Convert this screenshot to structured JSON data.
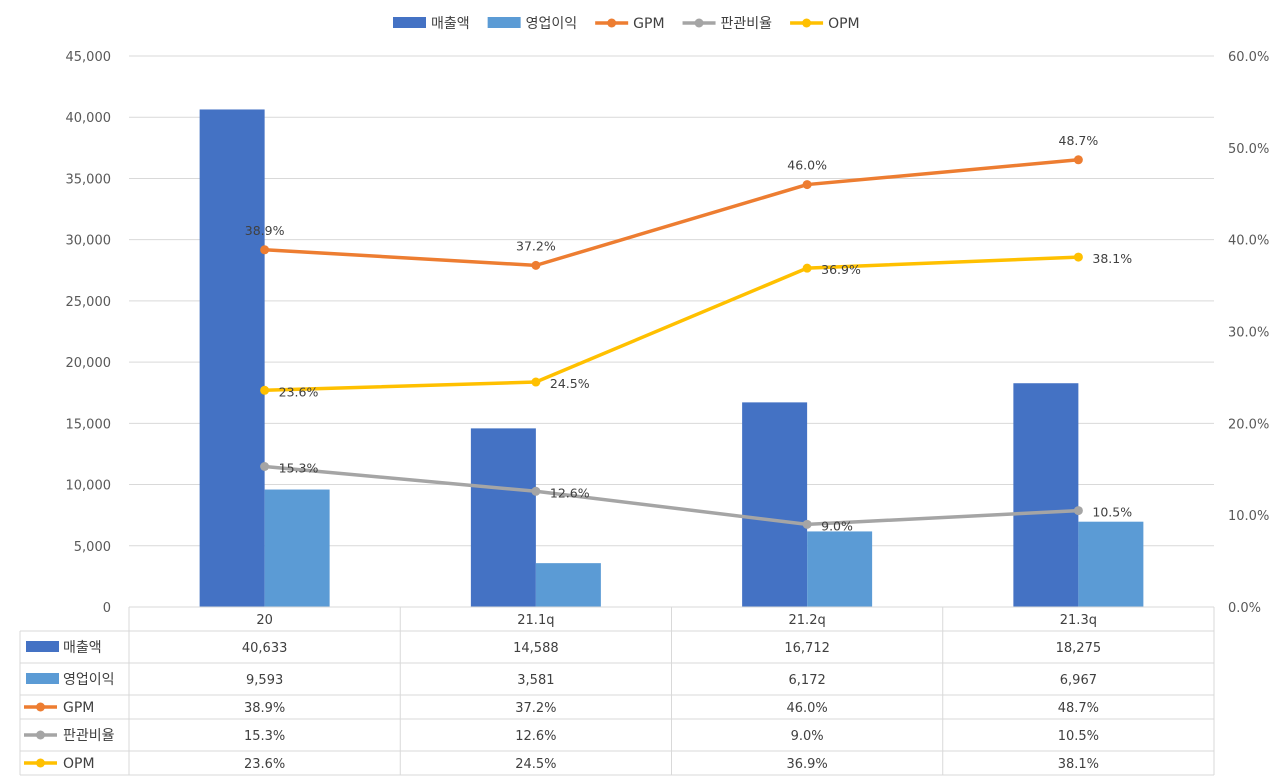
{
  "chart_data": {
    "type": "bar",
    "categories": [
      "20",
      "21.1q",
      "21.2q",
      "21.3q"
    ],
    "series": [
      {
        "name": "매출액",
        "kind": "bar",
        "axis": "left",
        "color": "#4472C4",
        "values": [
          40633,
          14588,
          16712,
          18275
        ]
      },
      {
        "name": "영업이익",
        "kind": "bar",
        "axis": "left",
        "color": "#5B9BD5",
        "values": [
          9593,
          3581,
          6172,
          6967
        ]
      },
      {
        "name": "GPM",
        "kind": "line",
        "axis": "right",
        "color": "#ED7D31",
        "values": [
          38.9,
          37.2,
          46.0,
          48.7
        ]
      },
      {
        "name": "판관비율",
        "kind": "line",
        "axis": "right",
        "color": "#A5A5A5",
        "values": [
          15.3,
          12.6,
          9.0,
          10.5
        ]
      },
      {
        "name": "OPM",
        "kind": "line",
        "axis": "right",
        "color": "#FFC000",
        "values": [
          23.6,
          24.5,
          36.9,
          38.1
        ]
      }
    ],
    "left_axis": {
      "min": 0,
      "max": 45000,
      "step": 5000,
      "tick_labels": [
        "0",
        "5,000",
        "10,000",
        "15,000",
        "20,000",
        "25,000",
        "30,000",
        "35,000",
        "40,000",
        "45,000"
      ]
    },
    "right_axis": {
      "min": 0,
      "max": 60,
      "step": 10,
      "tick_labels": [
        "0.0%",
        "10.0%",
        "20.0%",
        "30.0%",
        "40.0%",
        "50.0%",
        "60.0%"
      ]
    },
    "grid": true,
    "legend": "top",
    "data_labels": {
      "GPM": [
        "38.9%",
        "37.2%",
        "46.0%",
        "48.7%"
      ],
      "판관비율": [
        "15.3%",
        "12.6%",
        "9.0%",
        "10.5%"
      ],
      "OPM": [
        "23.6%",
        "24.5%",
        "36.9%",
        "38.1%"
      ]
    },
    "data_table": {
      "rows": [
        {
          "name": "매출액",
          "cells": [
            "40,633",
            "14,588",
            "16,712",
            "18,275"
          ]
        },
        {
          "name": "영업이익",
          "cells": [
            "9,593",
            "3,581",
            "6,172",
            "6,967"
          ]
        },
        {
          "name": "GPM",
          "cells": [
            "38.9%",
            "37.2%",
            "46.0%",
            "48.7%"
          ]
        },
        {
          "name": "판관비율",
          "cells": [
            "15.3%",
            "12.6%",
            "9.0%",
            "10.5%"
          ]
        },
        {
          "name": "OPM",
          "cells": [
            "23.6%",
            "24.5%",
            "36.9%",
            "38.1%"
          ]
        }
      ]
    }
  }
}
